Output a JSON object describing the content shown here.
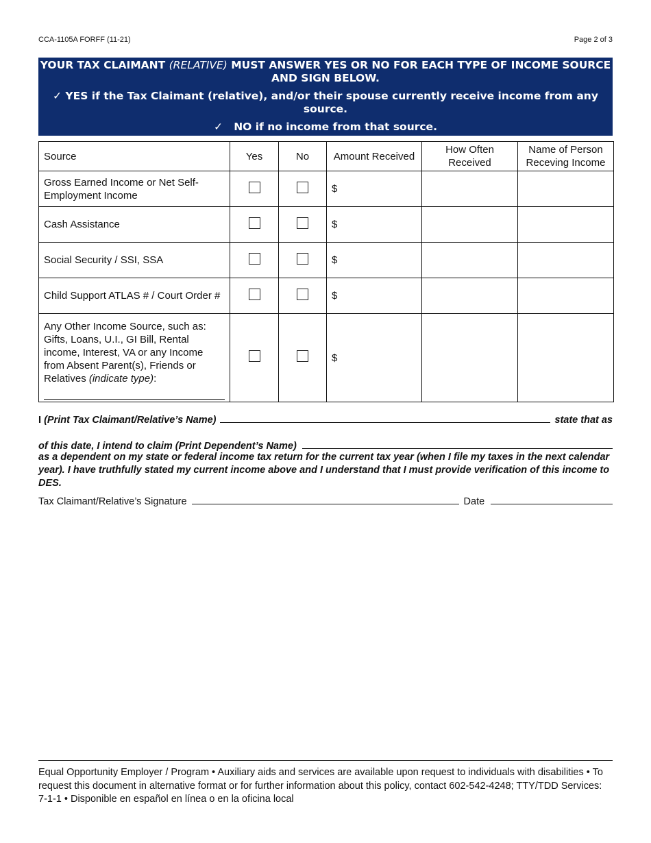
{
  "header": {
    "form_id": "CCA-1105A FORFF (11-21)",
    "page": "Page 2 of 3"
  },
  "banner": {
    "line1_a": "YOUR TAX CLAIMANT ",
    "line1_italic": "(RELATIVE)",
    "line1_b": " MUST ANSWER YES OR NO FOR EACH TYPE OF INCOME SOURCE AND SIGN BELOW.",
    "line2": "✓ YES if the Tax Claimant (relative), and/or their spouse currently receive income from any source.",
    "line3": "✓   NO if no income from that source."
  },
  "table": {
    "headers": [
      "Source",
      "Yes",
      "No",
      "Amount Received",
      "How Often Received",
      "Name of Person Receving Income"
    ],
    "rows": [
      {
        "source": "Gross Earned Income or Net Self-Employment Income",
        "amount": "$"
      },
      {
        "source": "Cash Assistance",
        "amount": "$"
      },
      {
        "source": "Social Security / SSI, SSA",
        "amount": "$"
      },
      {
        "source": "Child Support ATLAS # / Court Order #",
        "amount": "$"
      },
      {
        "source": "Any Other Income Source, such as: Gifts, Loans, U.I., GI Bill, Rental income, Interest, VA or any Income from Absent Parent(s), Friends or Relatives ",
        "source_italic": "(indicate type)",
        "source_end": ":",
        "amount": "$"
      }
    ]
  },
  "statement": {
    "i": "I ",
    "claimant_label": "(Print Tax Claimant/Relative’s Name)",
    "state_that_as": "state that as",
    "claim_label": "of this date, I intend to claim (Print Dependent’s Name)",
    "body": "as a dependent on my state or federal income tax return for the current tax year (when I file my taxes in the next calendar year). I have truthfully stated my current income above and I understand that I must provide verification of this income to DES.",
    "signature_label": "Tax Claimant/Relative’s Signature",
    "date_label": "Date"
  },
  "footer": {
    "text": "Equal Opportunity Employer / Program • Auxiliary aids and services are available upon request to individuals with disabilities • To request this document in alternative format or for further information about this policy, contact 602-542-4248; TTY/TDD Services: 7-1-1 • Disponible en español en línea o en la oficina local"
  },
  "colors": {
    "banner": "#0f2d6e"
  }
}
